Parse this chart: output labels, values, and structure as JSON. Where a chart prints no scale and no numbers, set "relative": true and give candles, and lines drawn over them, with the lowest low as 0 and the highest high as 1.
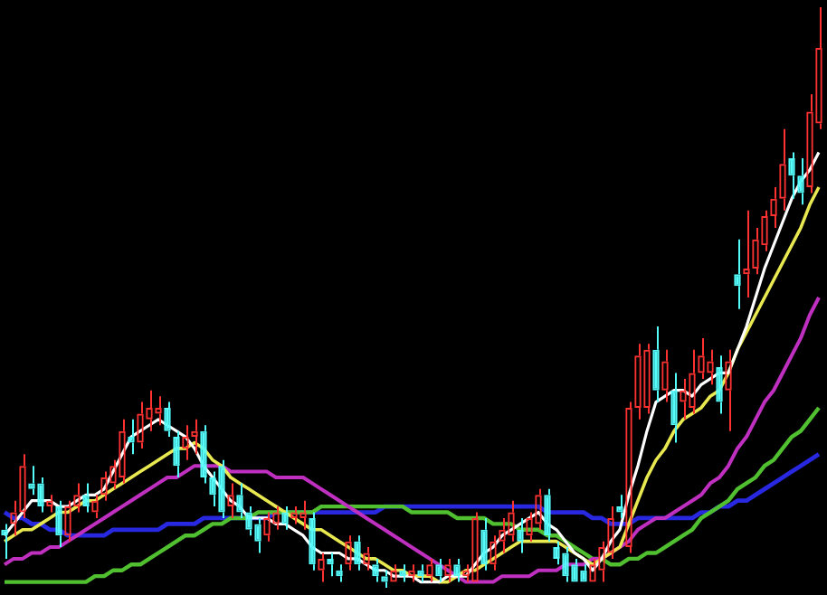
{
  "chart_data": {
    "type": "candlestick",
    "relative": true,
    "legend": false,
    "marker": "none",
    "line_style": "solid",
    "categories": [
      null,
      null,
      null,
      null,
      null,
      null,
      null,
      null,
      null,
      null,
      null,
      null,
      null,
      null,
      null,
      null,
      null,
      null,
      null,
      null,
      null,
      null,
      null,
      null,
      null,
      null,
      null,
      null,
      null,
      null,
      null,
      null,
      null,
      null,
      null,
      null,
      null,
      null,
      null,
      null,
      null,
      null,
      null,
      null,
      null,
      null,
      null,
      null,
      null,
      null,
      null,
      null,
      null,
      null,
      null,
      null,
      null,
      null,
      null,
      null,
      null,
      null,
      null,
      null,
      null,
      null,
      null,
      null,
      null,
      null,
      null,
      null,
      null,
      null,
      null,
      null,
      null,
      null,
      null,
      null,
      null,
      null,
      null,
      null,
      null,
      null,
      null,
      null,
      null,
      null,
      null
    ],
    "ohlc": [
      [
        0.1,
        0.11,
        0.05,
        0.09
      ],
      [
        0.11,
        0.15,
        0.09,
        0.13
      ],
      [
        0.13,
        0.23,
        0.12,
        0.21
      ],
      [
        0.18,
        0.21,
        0.16,
        0.17
      ],
      [
        0.18,
        0.19,
        0.13,
        0.14
      ],
      [
        0.14,
        0.16,
        0.13,
        0.15
      ],
      [
        0.14,
        0.15,
        0.07,
        0.09
      ],
      [
        0.09,
        0.15,
        0.08,
        0.14
      ],
      [
        0.14,
        0.18,
        0.13,
        0.16
      ],
      [
        0.16,
        0.18,
        0.13,
        0.14
      ],
      [
        0.13,
        0.16,
        0.12,
        0.15
      ],
      [
        0.16,
        0.2,
        0.15,
        0.19
      ],
      [
        0.18,
        0.22,
        0.17,
        0.21
      ],
      [
        0.19,
        0.29,
        0.18,
        0.27
      ],
      [
        0.26,
        0.29,
        0.23,
        0.25
      ],
      [
        0.25,
        0.32,
        0.24,
        0.3
      ],
      [
        0.29,
        0.34,
        0.27,
        0.31
      ],
      [
        0.3,
        0.33,
        0.28,
        0.31
      ],
      [
        0.31,
        0.32,
        0.26,
        0.27
      ],
      [
        0.26,
        0.27,
        0.19,
        0.21
      ],
      [
        0.24,
        0.28,
        0.22,
        0.26
      ],
      [
        0.26,
        0.29,
        0.23,
        0.27
      ],
      [
        0.27,
        0.28,
        0.18,
        0.19
      ],
      [
        0.19,
        0.2,
        0.14,
        0.16
      ],
      [
        0.21,
        0.22,
        0.12,
        0.13
      ],
      [
        0.14,
        0.18,
        0.12,
        0.16
      ],
      [
        0.16,
        0.18,
        0.12,
        0.13
      ],
      [
        0.13,
        0.14,
        0.09,
        0.1
      ],
      [
        0.11,
        0.12,
        0.06,
        0.08
      ],
      [
        0.09,
        0.13,
        0.08,
        0.12
      ],
      [
        0.11,
        0.14,
        0.1,
        0.13
      ],
      [
        0.13,
        0.14,
        0.1,
        0.11
      ],
      [
        0.12,
        0.14,
        0.11,
        0.13
      ],
      [
        0.12,
        0.15,
        0.1,
        0.13
      ],
      [
        0.12,
        0.13,
        0.03,
        0.04
      ],
      [
        0.03,
        0.06,
        0.01,
        0.05
      ],
      [
        0.05,
        0.06,
        0.02,
        0.04
      ],
      [
        0.03,
        0.04,
        0.01,
        0.02
      ],
      [
        0.04,
        0.09,
        0.03,
        0.08
      ],
      [
        0.08,
        0.09,
        0.03,
        0.04
      ],
      [
        0.04,
        0.07,
        0.03,
        0.06
      ],
      [
        0.04,
        0.05,
        0.01,
        0.02
      ],
      [
        0.02,
        0.03,
        0,
        0.01
      ],
      [
        0.01,
        0.04,
        0.01,
        0.03
      ],
      [
        0.03,
        0.04,
        0.01,
        0.02
      ],
      [
        0.02,
        0.04,
        0.01,
        0.03
      ],
      [
        0.03,
        0.04,
        0.01,
        0.02
      ],
      [
        0.02,
        0.05,
        0.01,
        0.04
      ],
      [
        0.04,
        0.05,
        0.01,
        0.02
      ],
      [
        0.02,
        0.05,
        0.01,
        0.04
      ],
      [
        0.04,
        0.05,
        0.01,
        0.02
      ],
      [
        0.02,
        0.04,
        0.01,
        0.03
      ],
      [
        0.01,
        0.13,
        0.01,
        0.12
      ],
      [
        0.1,
        0.12,
        0.03,
        0.04
      ],
      [
        0.04,
        0.09,
        0.03,
        0.08
      ],
      [
        0.08,
        0.12,
        0.06,
        0.1
      ],
      [
        0.09,
        0.15,
        0.08,
        0.13
      ],
      [
        0.1,
        0.12,
        0.06,
        0.08
      ],
      [
        0.09,
        0.13,
        0.08,
        0.12
      ],
      [
        0.11,
        0.17,
        0.1,
        0.16
      ],
      [
        0.16,
        0.17,
        0.08,
        0.09
      ],
      [
        0.07,
        0.08,
        0.04,
        0.05
      ],
      [
        0.06,
        0.07,
        0.01,
        0.02
      ],
      [
        0.04,
        0.05,
        0.01,
        0.01
      ],
      [
        0.03,
        0.04,
        0.01,
        0.01
      ],
      [
        0.01,
        0.05,
        0.01,
        0.04
      ],
      [
        0.03,
        0.08,
        0.01,
        0.07
      ],
      [
        0.06,
        0.14,
        0.05,
        0.12
      ],
      [
        0.14,
        0.16,
        0.12,
        0.13
      ],
      [
        0.07,
        0.32,
        0.06,
        0.31
      ],
      [
        0.31,
        0.42,
        0.29,
        0.4
      ],
      [
        0.31,
        0.42,
        0.3,
        0.41
      ],
      [
        0.41,
        0.45,
        0.32,
        0.34
      ],
      [
        0.34,
        0.41,
        0.32,
        0.39
      ],
      [
        0.34,
        0.37,
        0.25,
        0.28
      ],
      [
        0.32,
        0.36,
        0.29,
        0.34
      ],
      [
        0.31,
        0.41,
        0.3,
        0.37
      ],
      [
        0.37,
        0.43,
        0.36,
        0.4
      ],
      [
        0.37,
        0.41,
        0.35,
        0.39
      ],
      [
        0.38,
        0.4,
        0.3,
        0.32
      ],
      [
        0.34,
        0.41,
        0.27,
        0.39
      ],
      [
        0.54,
        0.6,
        0.48,
        0.52
      ],
      [
        0.54,
        0.65,
        0.5,
        0.55
      ],
      [
        0.55,
        0.62,
        0.54,
        0.6
      ],
      [
        0.59,
        0.65,
        0.58,
        0.64
      ],
      [
        0.64,
        0.69,
        0.62,
        0.67
      ],
      [
        0.67,
        0.79,
        0.65,
        0.73
      ],
      [
        0.74,
        0.75,
        0.67,
        0.71
      ],
      [
        0.71,
        0.74,
        0.66,
        0.68
      ],
      [
        0.69,
        0.85,
        0.68,
        0.82
      ],
      [
        0.8,
        1,
        0.79,
        0.93
      ]
    ],
    "series": [
      {
        "type": "line",
        "color": "#ffffff",
        "values": [
          0.09,
          0.11,
          0.13,
          0.15,
          0.15,
          0.15,
          0.14,
          0.14,
          0.15,
          0.16,
          0.16,
          0.17,
          0.2,
          0.23,
          0.26,
          0.27,
          0.28,
          0.29,
          0.28,
          0.27,
          0.26,
          0.24,
          0.21,
          0.19,
          0.17,
          0.15,
          0.14,
          0.12,
          0.12,
          0.12,
          0.11,
          0.11,
          0.1,
          0.09,
          0.07,
          0.06,
          0.06,
          0.06,
          0.05,
          0.05,
          0.04,
          0.03,
          0.03,
          0.02,
          0.02,
          0.02,
          0.01,
          0.01,
          0.01,
          0.02,
          0.02,
          0.02,
          0.04,
          0.06,
          0.07,
          0.09,
          0.1,
          0.11,
          0.12,
          0.13,
          0.11,
          0.1,
          0.08,
          0.06,
          0.05,
          0.03,
          0.05,
          0.08,
          0.1,
          0.16,
          0.21,
          0.27,
          0.32,
          0.33,
          0.34,
          0.34,
          0.33,
          0.35,
          0.36,
          0.37,
          0.37,
          0.41,
          0.45,
          0.5,
          0.55,
          0.59,
          0.63,
          0.67,
          0.7,
          0.72,
          0.75
        ]
      },
      {
        "type": "line",
        "color": "#e8e850",
        "values": [
          0.08,
          0.09,
          0.1,
          0.1,
          0.11,
          0.12,
          0.13,
          0.13,
          0.14,
          0.15,
          0.15,
          0.16,
          0.17,
          0.18,
          0.19,
          0.2,
          0.21,
          0.22,
          0.23,
          0.24,
          0.24,
          0.25,
          0.24,
          0.22,
          0.21,
          0.19,
          0.18,
          0.17,
          0.16,
          0.15,
          0.14,
          0.13,
          0.12,
          0.11,
          0.1,
          0.1,
          0.09,
          0.08,
          0.07,
          0.06,
          0.05,
          0.05,
          0.04,
          0.03,
          0.03,
          0.02,
          0.02,
          0.02,
          0.01,
          0.01,
          0.02,
          0.03,
          0.03,
          0.04,
          0.05,
          0.06,
          0.07,
          0.08,
          0.08,
          0.08,
          0.08,
          0.08,
          0.07,
          0.06,
          0.05,
          0.04,
          0.05,
          0.06,
          0.07,
          0.11,
          0.15,
          0.19,
          0.22,
          0.24,
          0.27,
          0.29,
          0.3,
          0.31,
          0.33,
          0.34,
          0.37,
          0.41,
          0.44,
          0.47,
          0.5,
          0.53,
          0.56,
          0.59,
          0.62,
          0.66,
          0.69
        ]
      },
      {
        "type": "line",
        "color": "#c030c0",
        "values": [
          0.04,
          0.05,
          0.05,
          0.06,
          0.06,
          0.07,
          0.07,
          0.08,
          0.09,
          0.1,
          0.11,
          0.12,
          0.13,
          0.14,
          0.15,
          0.16,
          0.17,
          0.18,
          0.19,
          0.19,
          0.2,
          0.21,
          0.21,
          0.21,
          0.21,
          0.2,
          0.2,
          0.2,
          0.2,
          0.2,
          0.19,
          0.19,
          0.19,
          0.19,
          0.18,
          0.17,
          0.16,
          0.15,
          0.14,
          0.13,
          0.12,
          0.11,
          0.1,
          0.09,
          0.08,
          0.07,
          0.06,
          0.05,
          0.04,
          0.03,
          0.02,
          0.01,
          0.01,
          0.01,
          0.01,
          0.02,
          0.02,
          0.02,
          0.02,
          0.03,
          0.03,
          0.03,
          0.04,
          0.04,
          0.04,
          0.05,
          0.05,
          0.06,
          0.07,
          0.08,
          0.1,
          0.11,
          0.12,
          0.12,
          0.13,
          0.14,
          0.15,
          0.16,
          0.18,
          0.19,
          0.21,
          0.24,
          0.26,
          0.29,
          0.32,
          0.34,
          0.37,
          0.4,
          0.43,
          0.47,
          0.5
        ]
      },
      {
        "type": "line",
        "color": "#50c030",
        "values": [
          0.01,
          0.01,
          0.01,
          0.01,
          0.01,
          0.01,
          0.01,
          0.01,
          0.01,
          0.01,
          0.02,
          0.02,
          0.03,
          0.03,
          0.04,
          0.04,
          0.05,
          0.06,
          0.07,
          0.08,
          0.09,
          0.09,
          0.1,
          0.11,
          0.11,
          0.12,
          0.12,
          0.12,
          0.13,
          0.13,
          0.13,
          0.13,
          0.13,
          0.13,
          0.13,
          0.14,
          0.14,
          0.14,
          0.14,
          0.14,
          0.14,
          0.14,
          0.14,
          0.14,
          0.14,
          0.13,
          0.13,
          0.13,
          0.13,
          0.13,
          0.12,
          0.12,
          0.12,
          0.12,
          0.11,
          0.11,
          0.11,
          0.1,
          0.1,
          0.1,
          0.09,
          0.09,
          0.08,
          0.07,
          0.06,
          0.05,
          0.05,
          0.04,
          0.04,
          0.05,
          0.05,
          0.06,
          0.06,
          0.07,
          0.08,
          0.09,
          0.1,
          0.12,
          0.13,
          0.14,
          0.15,
          0.17,
          0.18,
          0.19,
          0.21,
          0.22,
          0.24,
          0.26,
          0.27,
          0.29,
          0.31
        ]
      },
      {
        "type": "line",
        "color": "#2828e0",
        "values": [
          0.13,
          0.12,
          0.12,
          0.11,
          0.11,
          0.1,
          0.1,
          0.09,
          0.09,
          0.09,
          0.09,
          0.09,
          0.1,
          0.1,
          0.1,
          0.1,
          0.1,
          0.1,
          0.11,
          0.11,
          0.11,
          0.11,
          0.12,
          0.12,
          0.12,
          0.12,
          0.12,
          0.12,
          0.12,
          0.12,
          0.13,
          0.13,
          0.13,
          0.13,
          0.13,
          0.13,
          0.13,
          0.13,
          0.13,
          0.13,
          0.13,
          0.13,
          0.14,
          0.14,
          0.14,
          0.14,
          0.14,
          0.14,
          0.14,
          0.14,
          0.14,
          0.14,
          0.14,
          0.14,
          0.14,
          0.14,
          0.14,
          0.14,
          0.14,
          0.14,
          0.13,
          0.13,
          0.13,
          0.13,
          0.13,
          0.12,
          0.12,
          0.11,
          0.11,
          0.11,
          0.12,
          0.12,
          0.12,
          0.12,
          0.12,
          0.12,
          0.12,
          0.13,
          0.13,
          0.14,
          0.14,
          0.15,
          0.15,
          0.16,
          0.17,
          0.18,
          0.19,
          0.2,
          0.21,
          0.22,
          0.23
        ]
      }
    ]
  }
}
